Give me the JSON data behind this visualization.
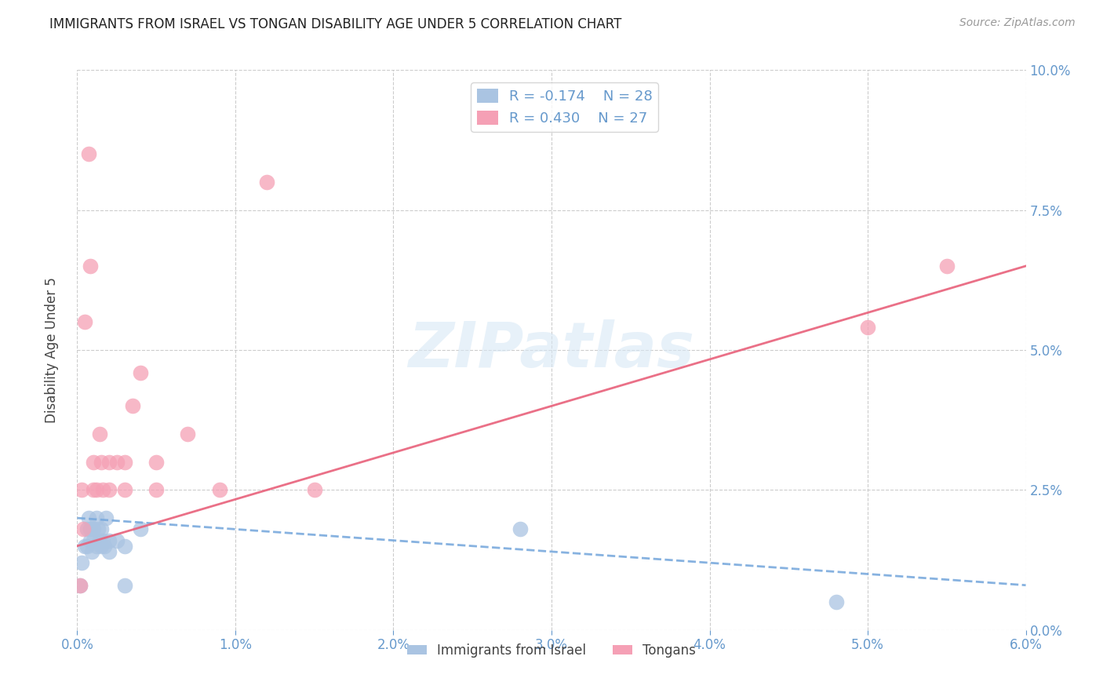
{
  "title": "IMMIGRANTS FROM ISRAEL VS TONGAN DISABILITY AGE UNDER 5 CORRELATION CHART",
  "source": "Source: ZipAtlas.com",
  "ylabel": "Disability Age Under 5",
  "watermark": "ZIPatlas",
  "legend_israel_r": "R = -0.174",
  "legend_israel_n": "N = 28",
  "legend_tongan_r": "R = 0.430",
  "legend_tongan_n": "N = 27",
  "israel_color": "#aac4e2",
  "tongan_color": "#f5a0b5",
  "israel_line_color": "#7aaadd",
  "tongan_line_color": "#e8607a",
  "axis_label_color": "#6699cc",
  "background_color": "#ffffff",
  "xlim": [
    0.0,
    0.06
  ],
  "ylim": [
    0.0,
    0.1
  ],
  "israel_x": [
    0.0002,
    0.0003,
    0.0005,
    0.0006,
    0.0006,
    0.0007,
    0.0008,
    0.0008,
    0.0009,
    0.001,
    0.001,
    0.0012,
    0.0012,
    0.0013,
    0.0014,
    0.0015,
    0.0015,
    0.0016,
    0.0017,
    0.0018,
    0.002,
    0.002,
    0.0025,
    0.003,
    0.003,
    0.004,
    0.048,
    0.028
  ],
  "israel_y": [
    0.008,
    0.012,
    0.015,
    0.018,
    0.015,
    0.02,
    0.018,
    0.016,
    0.014,
    0.016,
    0.018,
    0.015,
    0.02,
    0.018,
    0.016,
    0.015,
    0.018,
    0.016,
    0.015,
    0.02,
    0.016,
    0.014,
    0.016,
    0.008,
    0.015,
    0.018,
    0.005,
    0.018
  ],
  "tongan_x": [
    0.0002,
    0.0003,
    0.0004,
    0.0005,
    0.0007,
    0.0008,
    0.001,
    0.001,
    0.0012,
    0.0014,
    0.0015,
    0.0016,
    0.002,
    0.002,
    0.0025,
    0.003,
    0.003,
    0.0035,
    0.004,
    0.005,
    0.005,
    0.007,
    0.009,
    0.012,
    0.015,
    0.05,
    0.055
  ],
  "tongan_y": [
    0.008,
    0.025,
    0.018,
    0.055,
    0.085,
    0.065,
    0.025,
    0.03,
    0.025,
    0.035,
    0.03,
    0.025,
    0.03,
    0.025,
    0.03,
    0.025,
    0.03,
    0.04,
    0.046,
    0.025,
    0.03,
    0.035,
    0.025,
    0.08,
    0.025,
    0.054,
    0.065
  ],
  "israel_line_x": [
    0.0,
    0.06
  ],
  "israel_line_y": [
    0.02,
    0.008
  ],
  "tongan_line_x": [
    0.0,
    0.06
  ],
  "tongan_line_y": [
    0.015,
    0.065
  ]
}
